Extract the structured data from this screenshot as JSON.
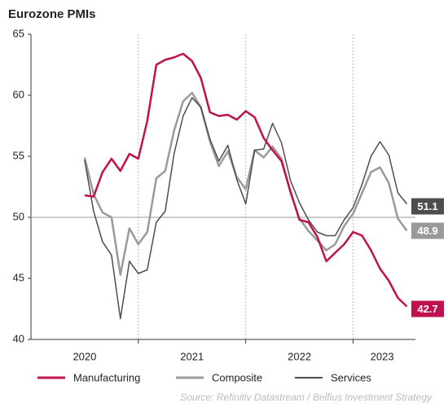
{
  "chart_data": {
    "type": "line",
    "title": "Eurozone PMIs",
    "source": "Source: Refinitiv Datastream / Belfius Investment Strategy",
    "x": [
      2020.5,
      2020.583,
      2020.667,
      2020.75,
      2020.833,
      2020.917,
      2021,
      2021.083,
      2021.167,
      2021.25,
      2021.333,
      2021.417,
      2021.5,
      2021.583,
      2021.667,
      2021.75,
      2021.833,
      2021.917,
      2022,
      2022.083,
      2022.167,
      2022.25,
      2022.333,
      2022.417,
      2022.5,
      2022.583,
      2022.667,
      2022.75,
      2022.833,
      2022.917,
      2023,
      2023.083,
      2023.167,
      2023.25,
      2023.333,
      2023.417,
      2023.5
    ],
    "series": [
      {
        "name": "Manufacturing",
        "color": "#c0104e",
        "width": 2.5,
        "values": [
          51.8,
          51.7,
          53.7,
          54.8,
          53.8,
          55.2,
          54.8,
          57.9,
          62.5,
          62.9,
          63.1,
          63.4,
          62.8,
          61.4,
          58.6,
          58.3,
          58.4,
          58.0,
          58.7,
          58.2,
          56.5,
          55.5,
          54.6,
          52.1,
          49.8,
          49.6,
          48.4,
          46.4,
          47.1,
          47.8,
          48.8,
          48.5,
          47.3,
          45.8,
          44.8,
          43.4,
          42.7
        ]
      },
      {
        "name": "Composite",
        "color": "#9a9a9a",
        "width": 2.5,
        "values": [
          54.9,
          51.9,
          50.4,
          50.0,
          45.3,
          49.1,
          47.8,
          48.8,
          53.2,
          53.8,
          57.1,
          59.5,
          60.2,
          59.0,
          56.2,
          54.2,
          55.4,
          53.3,
          52.3,
          55.5,
          54.9,
          55.8,
          54.8,
          52.0,
          49.9,
          48.9,
          48.1,
          47.3,
          47.8,
          49.3,
          50.3,
          52.0,
          53.7,
          54.1,
          52.8,
          49.9,
          48.9
        ]
      },
      {
        "name": "Services",
        "color": "#4d4d4d",
        "width": 1.5,
        "values": [
          54.7,
          50.5,
          48.0,
          46.9,
          41.7,
          46.4,
          45.4,
          45.7,
          49.6,
          50.5,
          55.2,
          58.3,
          59.8,
          59.0,
          56.4,
          54.6,
          55.9,
          53.1,
          51.1,
          55.5,
          55.6,
          57.7,
          56.1,
          53.0,
          51.2,
          49.8,
          48.8,
          48.5,
          48.5,
          49.8,
          50.8,
          52.7,
          55.0,
          56.2,
          55.1,
          52.0,
          51.1
        ]
      }
    ],
    "xlim": [
      2020,
      2023.58
    ],
    "xticks": [
      {
        "value": 2020.5,
        "label": "2020"
      },
      {
        "value": 2021.5,
        "label": "2021"
      },
      {
        "value": 2022.5,
        "label": "2022"
      },
      {
        "value": 2023.27,
        "label": "2023"
      }
    ],
    "xgrid": [
      2021,
      2022,
      2023
    ],
    "ylim": [
      40,
      65
    ],
    "yticks": [
      40,
      45,
      50,
      55,
      60,
      65
    ],
    "refline": 50
  }
}
